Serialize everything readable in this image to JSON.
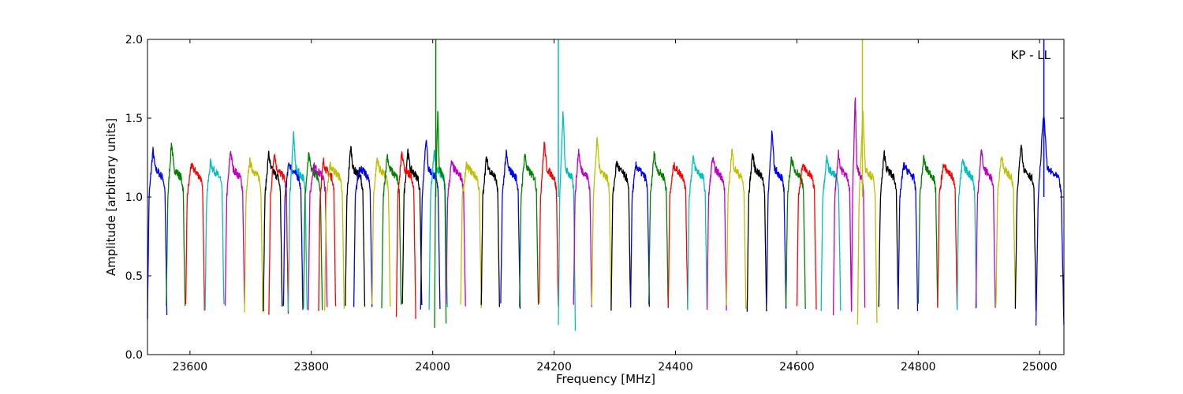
{
  "chart_data": {
    "type": "line",
    "title": "",
    "xlabel": "Frequency [MHz]",
    "ylabel": "Amplitude [arbitrary units]",
    "annotation": "KP - LL",
    "xlim": [
      23530,
      25040
    ],
    "ylim": [
      0.0,
      2.0
    ],
    "xticks": [
      23600,
      23800,
      24000,
      24200,
      24400,
      24600,
      24800,
      25000
    ],
    "yticks": [
      0.0,
      0.5,
      1.0,
      1.5,
      2.0
    ],
    "xtick_labels": [
      "23600",
      "23800",
      "24000",
      "24200",
      "24400",
      "24600",
      "24800",
      "25000"
    ],
    "ytick_labels": [
      "0.0",
      "0.5",
      "1.0",
      "1.5",
      "2.0"
    ],
    "grid": false,
    "legend": "none",
    "bandpass_segments": [
      {
        "color": "#0000ff",
        "start": 23530,
        "end": 23562,
        "peak": 1.3,
        "floor": 0.25
      },
      {
        "color": "#008000",
        "start": 23561,
        "end": 23592,
        "peak": 1.35,
        "floor": 0.3
      },
      {
        "color": "#ff0000",
        "start": 23593,
        "end": 23624,
        "peak": 1.2,
        "floor": 0.3
      },
      {
        "color": "#00bfbf",
        "start": 23625,
        "end": 23656,
        "peak": 1.22,
        "floor": 0.3
      },
      {
        "color": "#bf00bf",
        "start": 23658,
        "end": 23690,
        "peak": 1.3,
        "floor": 0.3
      },
      {
        "color": "#bfbf00",
        "start": 23690,
        "end": 23720,
        "peak": 1.23,
        "floor": 0.29
      },
      {
        "color": "#000000",
        "start": 23721,
        "end": 23752,
        "peak": 1.28,
        "floor": 0.3
      },
      {
        "color": "#ff0000",
        "start": 23730,
        "end": 23762,
        "peak": 1.29,
        "floor": 0.25
      },
      {
        "color": "#0000ff",
        "start": 23754,
        "end": 23786,
        "peak": 1.22,
        "floor": 0.3
      },
      {
        "color": "#00bfbf",
        "start": 23762,
        "end": 23793,
        "peak": 1.4,
        "floor": 0.3
      },
      {
        "color": "#008000",
        "start": 23787,
        "end": 23818,
        "peak": 1.27,
        "floor": 0.3
      },
      {
        "color": "#bf00bf",
        "start": 23795,
        "end": 23826,
        "peak": 1.2,
        "floor": 0.3
      },
      {
        "color": "#ff0000",
        "start": 23812,
        "end": 23840,
        "peak": 1.23,
        "floor": 0.3
      },
      {
        "color": "#bfbf00",
        "start": 23822,
        "end": 23854,
        "peak": 1.2,
        "floor": 0.3
      },
      {
        "color": "#000000",
        "start": 23856,
        "end": 23888,
        "peak": 1.32,
        "floor": 0.3
      },
      {
        "color": "#0000ff",
        "start": 23870,
        "end": 23900,
        "peak": 1.18,
        "floor": 0.3
      },
      {
        "color": "#bfbf00",
        "start": 23900,
        "end": 23930,
        "peak": 1.25,
        "floor": 0.3
      },
      {
        "color": "#008000",
        "start": 23916,
        "end": 23948,
        "peak": 1.27,
        "floor": 0.3
      },
      {
        "color": "#000000",
        "start": 23950,
        "end": 23982,
        "peak": 1.3,
        "floor": 0.3
      },
      {
        "color": "#ff0000",
        "start": 23940,
        "end": 23972,
        "peak": 1.28,
        "floor": 0.25
      },
      {
        "color": "#0000ff",
        "start": 23980,
        "end": 24012,
        "peak": 1.38,
        "floor": 0.3
      },
      {
        "color": "#00bfbf",
        "start": 23994,
        "end": 24024,
        "peak": 1.3,
        "floor": 0.3
      },
      {
        "color": "#008000",
        "start": 24003,
        "end": 24022,
        "peak": 1.55,
        "floor": 0.18
      },
      {
        "color": "#bf00bf",
        "start": 24022,
        "end": 24054,
        "peak": 1.22,
        "floor": 0.3
      },
      {
        "color": "#bfbf00",
        "start": 24046,
        "end": 24080,
        "peak": 1.2,
        "floor": 0.3
      },
      {
        "color": "#000000",
        "start": 24080,
        "end": 24110,
        "peak": 1.25,
        "floor": 0.3
      },
      {
        "color": "#0000ff",
        "start": 24112,
        "end": 24144,
        "peak": 1.28,
        "floor": 0.3
      },
      {
        "color": "#008000",
        "start": 24143,
        "end": 24174,
        "peak": 1.28,
        "floor": 0.3
      },
      {
        "color": "#ff0000",
        "start": 24175,
        "end": 24207,
        "peak": 1.35,
        "floor": 0.3
      },
      {
        "color": "#00bfbf",
        "start": 24207,
        "end": 24235,
        "peak": 1.55,
        "floor": 0.17
      },
      {
        "color": "#bf00bf",
        "start": 24232,
        "end": 24262,
        "peak": 1.3,
        "floor": 0.3
      },
      {
        "color": "#bfbf00",
        "start": 24262,
        "end": 24294,
        "peak": 1.37,
        "floor": 0.3
      },
      {
        "color": "#000000",
        "start": 24294,
        "end": 24326,
        "peak": 1.22,
        "floor": 0.3
      },
      {
        "color": "#0000ff",
        "start": 24326,
        "end": 24357,
        "peak": 1.2,
        "floor": 0.3
      },
      {
        "color": "#008000",
        "start": 24356,
        "end": 24388,
        "peak": 1.28,
        "floor": 0.3
      },
      {
        "color": "#ff0000",
        "start": 24388,
        "end": 24420,
        "peak": 1.2,
        "floor": 0.3
      },
      {
        "color": "#00bfbf",
        "start": 24420,
        "end": 24452,
        "peak": 1.25,
        "floor": 0.3
      },
      {
        "color": "#bf00bf",
        "start": 24452,
        "end": 24484,
        "peak": 1.25,
        "floor": 0.3
      },
      {
        "color": "#bfbf00",
        "start": 24484,
        "end": 24516,
        "peak": 1.3,
        "floor": 0.3
      },
      {
        "color": "#000000",
        "start": 24518,
        "end": 24550,
        "peak": 1.28,
        "floor": 0.25
      },
      {
        "color": "#0000ff",
        "start": 24550,
        "end": 24582,
        "peak": 1.42,
        "floor": 0.3
      },
      {
        "color": "#008000",
        "start": 24582,
        "end": 24614,
        "peak": 1.25,
        "floor": 0.3
      },
      {
        "color": "#ff0000",
        "start": 24600,
        "end": 24632,
        "peak": 1.2,
        "floor": 0.3
      },
      {
        "color": "#00bfbf",
        "start": 24640,
        "end": 24672,
        "peak": 1.25,
        "floor": 0.3
      },
      {
        "color": "#bf00bf",
        "start": 24660,
        "end": 24690,
        "peak": 1.28,
        "floor": 0.25
      },
      {
        "color": "#bfbf00",
        "start": 24700,
        "end": 24732,
        "peak": 1.55,
        "floor": 0.18
      },
      {
        "color": "#bf00bf",
        "start": 24690,
        "end": 24712,
        "peak": 1.65,
        "floor": 0.3
      },
      {
        "color": "#000000",
        "start": 24735,
        "end": 24767,
        "peak": 1.28,
        "floor": 0.3
      },
      {
        "color": "#0000ff",
        "start": 24767,
        "end": 24799,
        "peak": 1.2,
        "floor": 0.3
      },
      {
        "color": "#008000",
        "start": 24800,
        "end": 24832,
        "peak": 1.25,
        "floor": 0.3
      },
      {
        "color": "#ff0000",
        "start": 24832,
        "end": 24864,
        "peak": 1.2,
        "floor": 0.3
      },
      {
        "color": "#00bfbf",
        "start": 24864,
        "end": 24896,
        "peak": 1.23,
        "floor": 0.3
      },
      {
        "color": "#bf00bf",
        "start": 24895,
        "end": 24927,
        "peak": 1.3,
        "floor": 0.3
      },
      {
        "color": "#bfbf00",
        "start": 24928,
        "end": 24960,
        "peak": 1.27,
        "floor": 0.3
      },
      {
        "color": "#000000",
        "start": 24960,
        "end": 24994,
        "peak": 1.35,
        "floor": 0.3
      },
      {
        "color": "#0000ff",
        "start": 24994,
        "end": 25040,
        "peak": 1.55,
        "floor": 0.17
      }
    ],
    "spikes": [
      {
        "color": "#008000",
        "x": 24005,
        "y": 2.0
      },
      {
        "color": "#00bfbf",
        "x": 24207,
        "y": 2.0
      },
      {
        "color": "#bfbf00",
        "x": 24708,
        "y": 2.0
      },
      {
        "color": "#0000ff",
        "x": 25007,
        "y": 2.0
      }
    ]
  }
}
